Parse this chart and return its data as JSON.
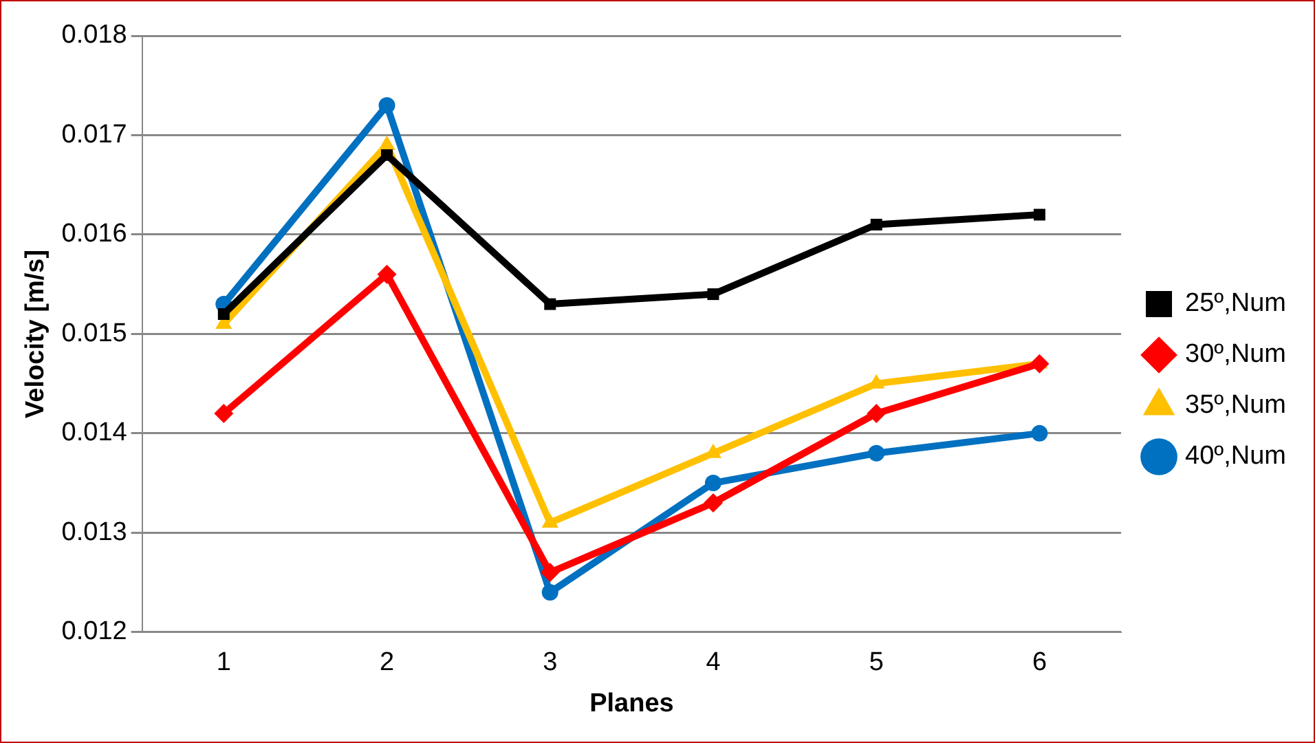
{
  "chart_data": {
    "type": "line",
    "xlabel": "Planes",
    "ylabel": "Velocity [m/s]",
    "categories": [
      "1",
      "2",
      "3",
      "4",
      "5",
      "6"
    ],
    "series": [
      {
        "name": "25º,Num",
        "color": "#000000",
        "marker": "square",
        "values": [
          0.0152,
          0.0168,
          0.0153,
          0.0154,
          0.0161,
          0.0162
        ]
      },
      {
        "name": "30º,Num",
        "color": "#ff0000",
        "marker": "diamond",
        "values": [
          0.0142,
          0.0156,
          0.0126,
          0.0133,
          0.0142,
          0.0147
        ]
      },
      {
        "name": "35º,Num",
        "color": "#ffc000",
        "marker": "triangle",
        "values": [
          0.0151,
          0.0169,
          0.0131,
          0.0138,
          0.0145,
          0.0147
        ]
      },
      {
        "name": "40º,Num",
        "color": "#0070c0",
        "marker": "circle",
        "values": [
          0.0153,
          0.0173,
          0.0124,
          0.0135,
          0.0138,
          0.014
        ]
      }
    ],
    "ylim": [
      0.012,
      0.018
    ],
    "yticks": [
      0.012,
      0.013,
      0.014,
      0.015,
      0.016,
      0.017,
      0.018
    ],
    "grid": "y",
    "legend": "right"
  }
}
